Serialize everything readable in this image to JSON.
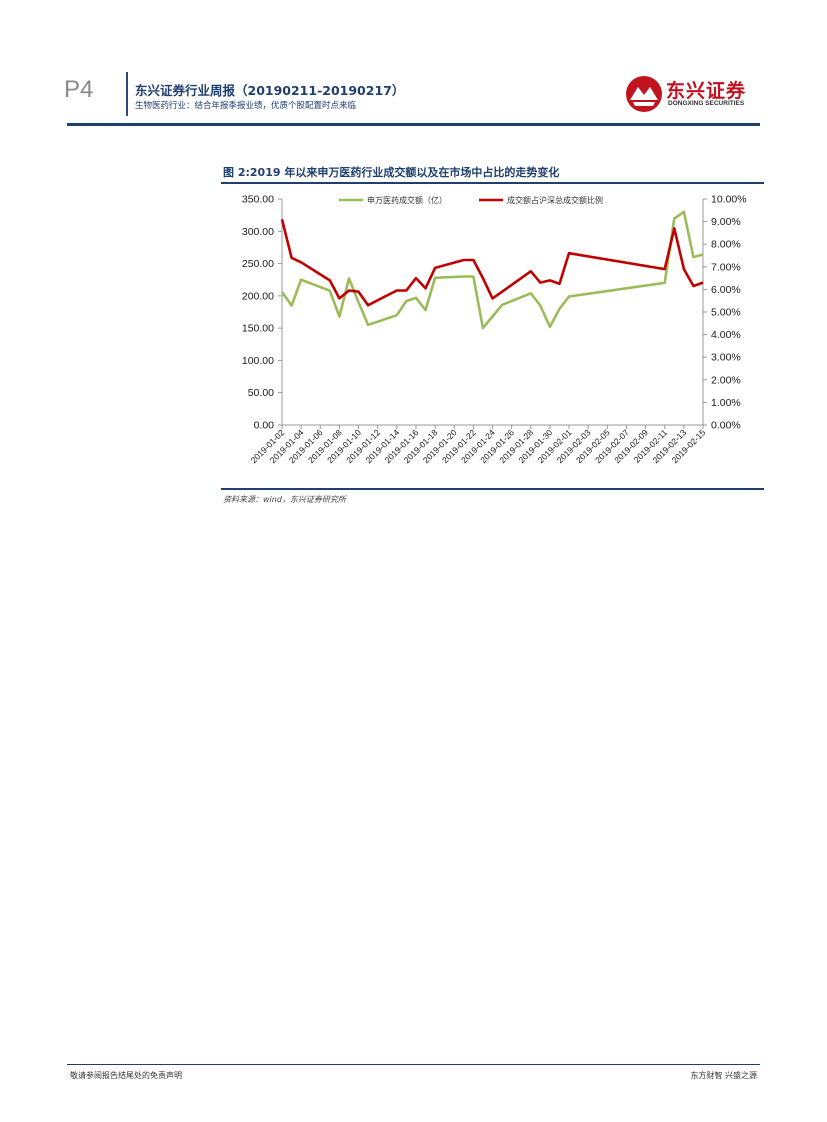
{
  "header": {
    "page_number": "P4",
    "report_title": "东兴证券行业周报（20190211-20190217）",
    "report_subtitle": "生物医药行业：结合年报季报业绩，优质个股配置时点来临",
    "logo_text": "东兴证券",
    "logo_subtext": "DONGXING SECURITIES"
  },
  "figure": {
    "title": "图 2:2019 年以来申万医药行业成交额以及在市场中占比的走势变化",
    "source": "资料来源：wind，东兴证券研究所"
  },
  "footer": {
    "left": "敬请参阅报告结尾处的免责声明",
    "right": "东方财智 兴盛之源"
  },
  "colors": {
    "brand_navy": "#1f3f6e",
    "brand_red": "#c1121f",
    "series_turnover": "#9bbb59",
    "series_share": "#c00000"
  },
  "chart_data": {
    "type": "line",
    "title": "",
    "y_left": {
      "ylim": [
        0,
        350
      ],
      "ticks": [
        "0.00",
        "50.00",
        "100.00",
        "150.00",
        "200.00",
        "250.00",
        "300.00",
        "350.00"
      ]
    },
    "y_right": {
      "ylim": [
        0,
        10
      ],
      "ticks": [
        "0.00%",
        "1.00%",
        "2.00%",
        "3.00%",
        "4.00%",
        "5.00%",
        "6.00%",
        "7.00%",
        "8.00%",
        "9.00%",
        "10.00%"
      ]
    },
    "x_ticks": [
      "2019-01-02",
      "2019-01-04",
      "2019-01-06",
      "2019-01-08",
      "2019-01-10",
      "2019-01-12",
      "2019-01-14",
      "2019-01-16",
      "2019-01-18",
      "2019-01-20",
      "2019-01-22",
      "2019-01-24",
      "2019-01-26",
      "2019-01-28",
      "2019-01-30",
      "2019-02-01",
      "2019-02-03",
      "2019-02-05",
      "2019-02-07",
      "2019-02-09",
      "2019-02-11",
      "2019-02-13",
      "2019-02-15"
    ],
    "x_start": "2019-01-02",
    "x_end": "2019-02-15",
    "legend_position": "top",
    "series": [
      {
        "name": "申万医药成交额（亿）",
        "axis": "left",
        "points": [
          [
            "2019-01-02",
            206
          ],
          [
            "2019-01-03",
            185
          ],
          [
            "2019-01-04",
            225
          ],
          [
            "2019-01-07",
            208
          ],
          [
            "2019-01-08",
            168
          ],
          [
            "2019-01-09",
            227
          ],
          [
            "2019-01-10",
            190
          ],
          [
            "2019-01-11",
            155
          ],
          [
            "2019-01-14",
            170
          ],
          [
            "2019-01-15",
            192
          ],
          [
            "2019-01-16",
            197
          ],
          [
            "2019-01-17",
            178
          ],
          [
            "2019-01-18",
            228
          ],
          [
            "2019-01-21",
            230
          ],
          [
            "2019-01-22",
            230
          ],
          [
            "2019-01-23",
            150
          ],
          [
            "2019-01-24",
            168
          ],
          [
            "2019-01-25",
            186
          ],
          [
            "2019-01-28",
            204
          ],
          [
            "2019-01-29",
            185
          ],
          [
            "2019-01-30",
            152
          ],
          [
            "2019-01-31",
            180
          ],
          [
            "2019-02-01",
            199
          ],
          [
            "2019-02-11",
            220
          ],
          [
            "2019-02-12",
            320
          ],
          [
            "2019-02-13",
            330
          ],
          [
            "2019-02-14",
            260
          ],
          [
            "2019-02-15",
            264
          ]
        ]
      },
      {
        "name": "成交额占沪深总成交额比例",
        "axis": "right",
        "points": [
          [
            "2019-01-02",
            9.1
          ],
          [
            "2019-01-03",
            7.4
          ],
          [
            "2019-01-04",
            7.2
          ],
          [
            "2019-01-07",
            6.4
          ],
          [
            "2019-01-08",
            5.6
          ],
          [
            "2019-01-09",
            5.95
          ],
          [
            "2019-01-10",
            5.9
          ],
          [
            "2019-01-11",
            5.3
          ],
          [
            "2019-01-14",
            5.95
          ],
          [
            "2019-01-15",
            5.95
          ],
          [
            "2019-01-16",
            6.5
          ],
          [
            "2019-01-17",
            6.05
          ],
          [
            "2019-01-18",
            6.95
          ],
          [
            "2019-01-21",
            7.3
          ],
          [
            "2019-01-22",
            7.3
          ],
          [
            "2019-01-23",
            6.5
          ],
          [
            "2019-01-24",
            5.6
          ],
          [
            "2019-01-25",
            5.9
          ],
          [
            "2019-01-28",
            6.8
          ],
          [
            "2019-01-29",
            6.3
          ],
          [
            "2019-01-30",
            6.4
          ],
          [
            "2019-01-31",
            6.25
          ],
          [
            "2019-02-01",
            7.6
          ],
          [
            "2019-02-11",
            6.9
          ],
          [
            "2019-02-12",
            8.7
          ],
          [
            "2019-02-13",
            6.9
          ],
          [
            "2019-02-14",
            6.15
          ],
          [
            "2019-02-15",
            6.3
          ]
        ]
      }
    ]
  }
}
